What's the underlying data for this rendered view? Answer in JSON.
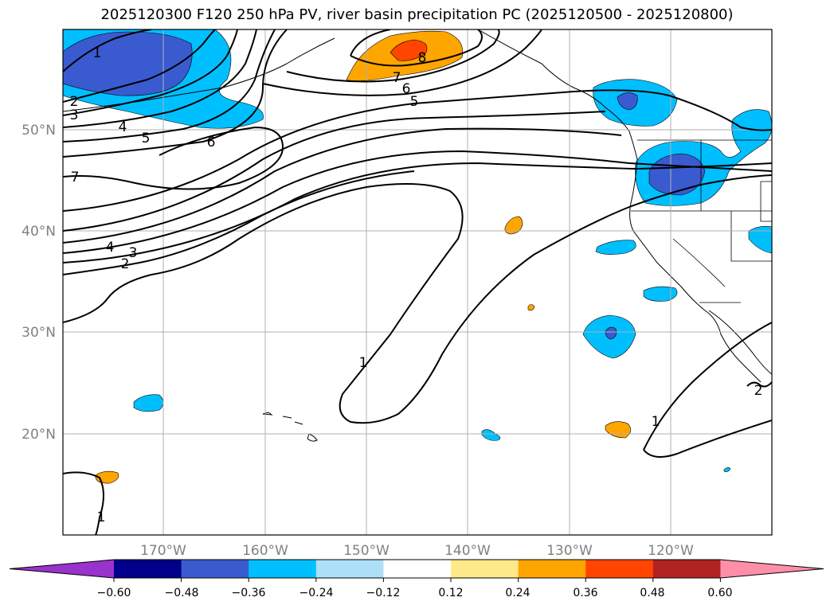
{
  "title": "2025120300 F120 250 hPa PV, river basin precipitation PC (2025120500 - 2025120800)",
  "map": {
    "lat_labels": [
      "50°N",
      "40°N",
      "30°N",
      "20°N"
    ],
    "lon_labels": [
      "170°W",
      "160°W",
      "150°W",
      "140°W",
      "130°W",
      "120°W"
    ],
    "contour_labels": [
      "1",
      "2",
      "3",
      "4",
      "5",
      "6",
      "7",
      "8",
      "7",
      "6",
      "5",
      "4",
      "3",
      "2",
      "1",
      "1",
      "1",
      "2"
    ]
  },
  "colorbar": {
    "colors": [
      "#9933cc",
      "#00008b",
      "#3a5bcf",
      "#00bfff",
      "#ade0f8",
      "#ffffff",
      "#ffe98a",
      "#ffa500",
      "#ff4500",
      "#b22222",
      "#ff8fa8"
    ],
    "tick_labels": [
      "−0.60",
      "−0.48",
      "−0.36",
      "−0.24",
      "−0.12",
      "0.12",
      "0.24",
      "0.36",
      "0.48",
      "0.60"
    ]
  }
}
